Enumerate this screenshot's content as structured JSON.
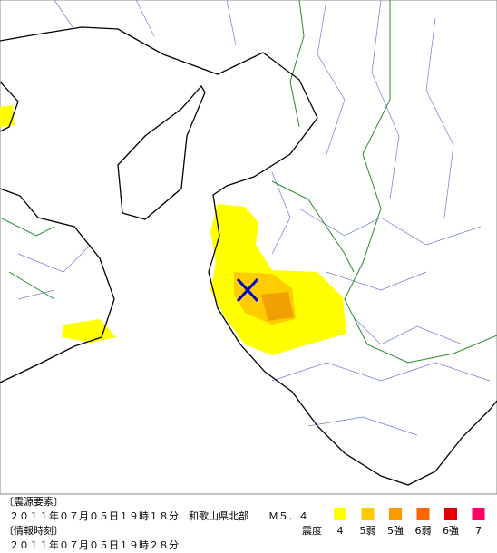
{
  "hypocenter": {
    "heading": "〔震源要素〕",
    "text": "２０１１年０７月０５日１９時１８分　和歌山県北部　　Ｍ５．４"
  },
  "issue_time": {
    "heading": "〔情報時刻〕",
    "text": "２０１１年０７月０５日１９時２８分"
  },
  "legend": {
    "title": "震度",
    "items": [
      {
        "label": "4",
        "color": "#ffff00"
      },
      {
        "label": "5弱",
        "color": "#ffcc00"
      },
      {
        "label": "5強",
        "color": "#ff9900"
      },
      {
        "label": "6弱",
        "color": "#ff6600"
      },
      {
        "label": "6強",
        "color": "#e60000"
      },
      {
        "label": "7",
        "color": "#ff0066"
      }
    ]
  }
}
